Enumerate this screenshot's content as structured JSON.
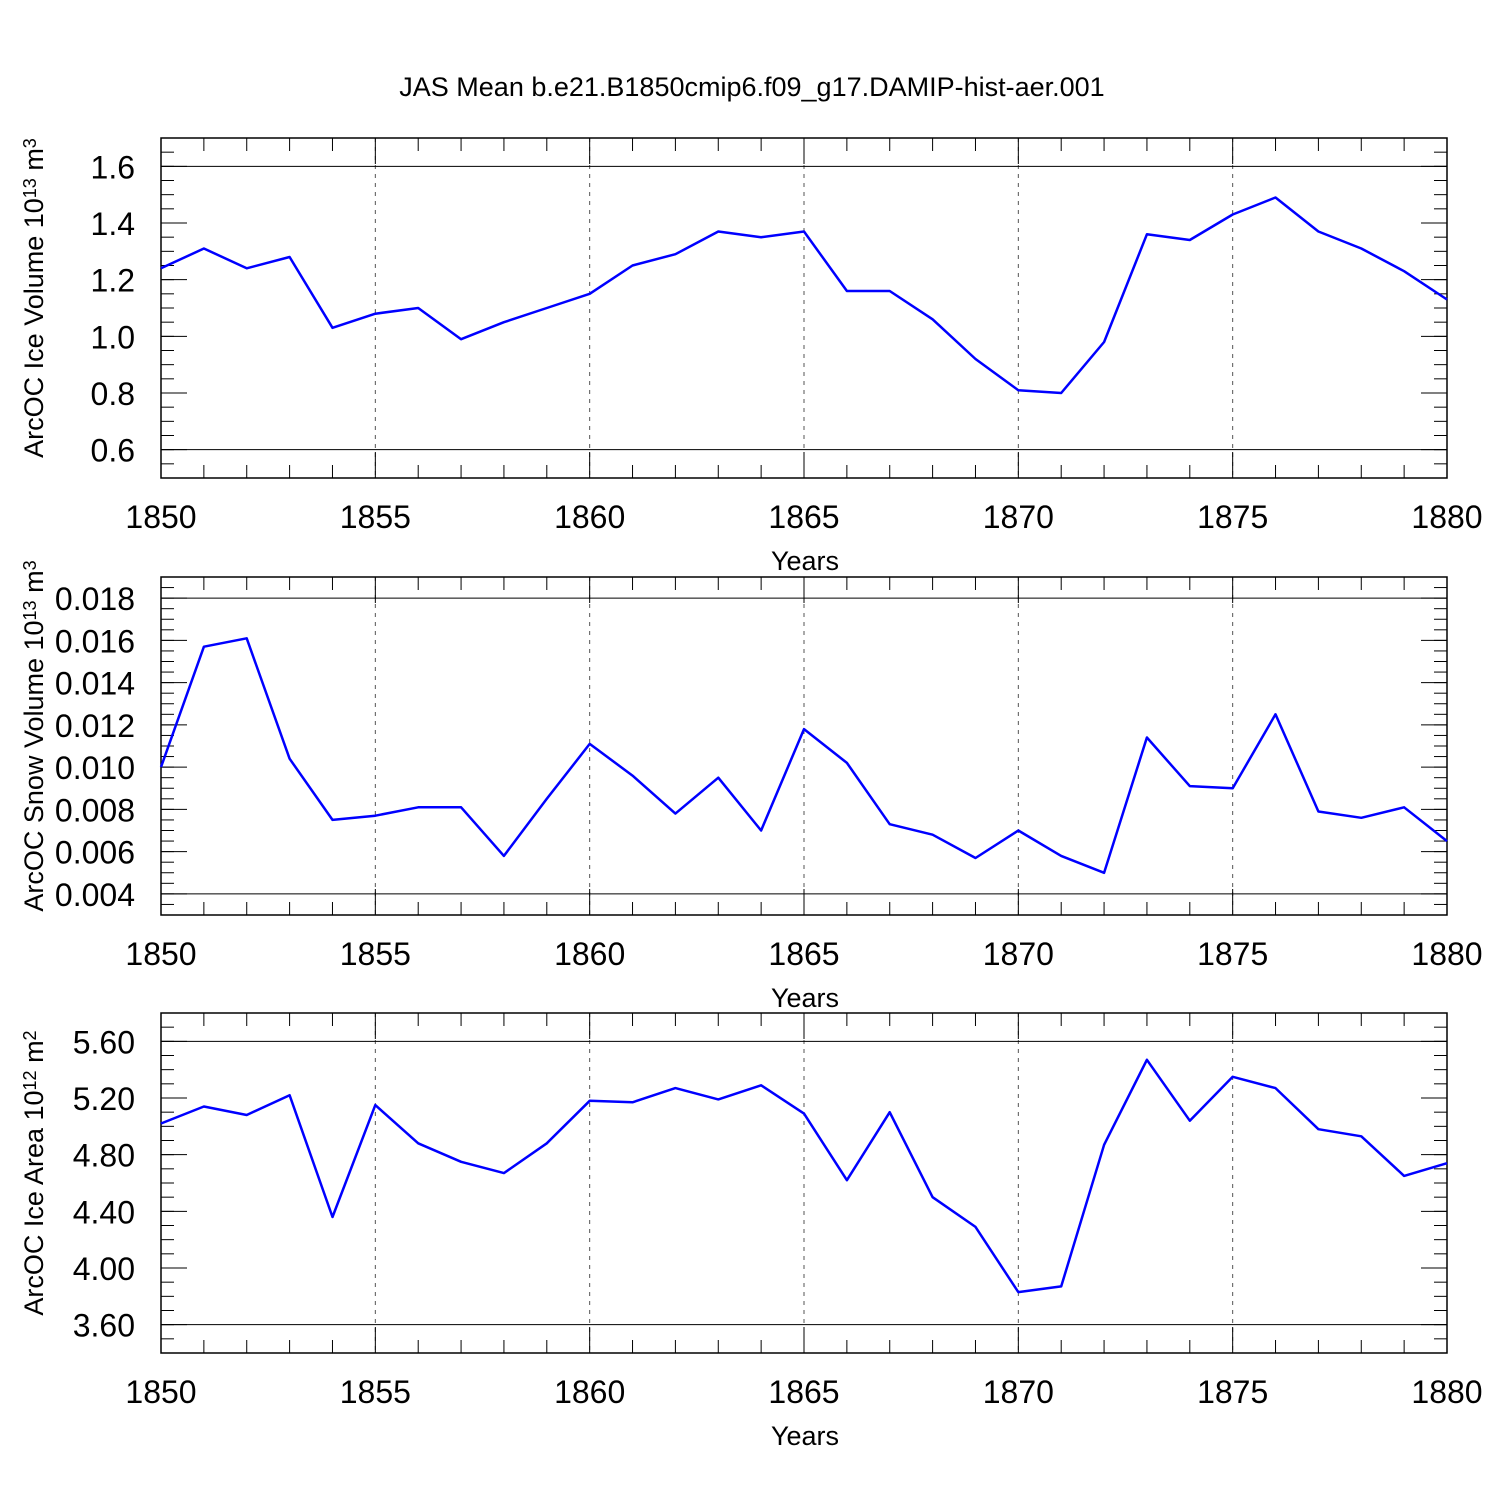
{
  "title": "JAS Mean b.e21.B1850cmip6.f09_g17.DAMIP-hist-aer.001",
  "line_color": "#0000ff",
  "chart_data": [
    {
      "type": "line",
      "name": "ice-volume",
      "ylabel_main": "ArcOC Ice Volume 10",
      "ylabel_exp": "13",
      "ylabel_unit": " m",
      "ylabel_unit_exp": "3",
      "xlabel": "Years",
      "xlim": [
        1850,
        1880
      ],
      "ylim": [
        0.5,
        1.7
      ],
      "yticks": [
        0.6,
        0.8,
        1.0,
        1.2,
        1.4,
        1.6
      ],
      "ytick_labels": [
        "0.6",
        "0.8",
        "1.0",
        "1.2",
        "1.4",
        "1.6"
      ],
      "ytick_minor": 0.05,
      "xticks": [
        1850,
        1855,
        1860,
        1865,
        1870,
        1875,
        1880
      ],
      "xtick_labels": [
        "1850",
        "1855",
        "1860",
        "1865",
        "1870",
        "1875",
        "1880"
      ],
      "x": [
        1850,
        1851,
        1852,
        1853,
        1854,
        1855,
        1856,
        1857,
        1858,
        1859,
        1860,
        1861,
        1862,
        1863,
        1864,
        1865,
        1866,
        1867,
        1868,
        1869,
        1870,
        1871,
        1872,
        1873,
        1874,
        1875,
        1876,
        1877,
        1878,
        1879,
        1880
      ],
      "y": [
        1.24,
        1.31,
        1.24,
        1.28,
        1.03,
        1.08,
        1.1,
        0.99,
        1.05,
        1.1,
        1.15,
        1.25,
        1.29,
        1.37,
        1.35,
        1.37,
        1.16,
        1.16,
        1.06,
        0.92,
        0.81,
        0.8,
        0.98,
        1.36,
        1.34,
        1.43,
        1.49,
        1.37,
        1.31,
        1.23,
        1.13
      ]
    },
    {
      "type": "line",
      "name": "snow-volume",
      "ylabel_main": "ArcOC Snow Volume 10",
      "ylabel_exp": "13",
      "ylabel_unit": " m",
      "ylabel_unit_exp": "3",
      "xlabel": "Years",
      "xlim": [
        1850,
        1880
      ],
      "ylim": [
        0.003,
        0.019
      ],
      "yticks": [
        0.004,
        0.006,
        0.008,
        0.01,
        0.012,
        0.014,
        0.016,
        0.018
      ],
      "ytick_labels": [
        "0.004",
        "0.006",
        "0.008",
        "0.010",
        "0.012",
        "0.014",
        "0.016",
        "0.018"
      ],
      "ytick_minor": 0.0005,
      "xticks": [
        1850,
        1855,
        1860,
        1865,
        1870,
        1875,
        1880
      ],
      "xtick_labels": [
        "1850",
        "1855",
        "1860",
        "1865",
        "1870",
        "1875",
        "1880"
      ],
      "x": [
        1850,
        1851,
        1852,
        1853,
        1854,
        1855,
        1856,
        1857,
        1858,
        1859,
        1860,
        1861,
        1862,
        1863,
        1864,
        1865,
        1866,
        1867,
        1868,
        1869,
        1870,
        1871,
        1872,
        1873,
        1874,
        1875,
        1876,
        1877,
        1878,
        1879,
        1880
      ],
      "y": [
        0.01,
        0.0157,
        0.0161,
        0.0104,
        0.0075,
        0.0077,
        0.0081,
        0.0081,
        0.0058,
        0.0085,
        0.0111,
        0.0096,
        0.0078,
        0.0095,
        0.007,
        0.0118,
        0.0102,
        0.0073,
        0.0068,
        0.0057,
        0.007,
        0.0058,
        0.005,
        0.0114,
        0.0091,
        0.009,
        0.0125,
        0.0079,
        0.0076,
        0.0081,
        0.0065
      ]
    },
    {
      "type": "line",
      "name": "ice-area",
      "ylabel_main": "ArcOC Ice Area 10",
      "ylabel_exp": "12",
      "ylabel_unit": " m",
      "ylabel_unit_exp": "2",
      "xlabel": "Years",
      "xlim": [
        1850,
        1880
      ],
      "ylim": [
        3.4,
        5.8
      ],
      "yticks": [
        3.6,
        4.0,
        4.4,
        4.8,
        5.2,
        5.6
      ],
      "ytick_labels": [
        "3.60",
        "4.00",
        "4.40",
        "4.80",
        "5.20",
        "5.60"
      ],
      "ytick_minor": 0.1,
      "xticks": [
        1850,
        1855,
        1860,
        1865,
        1870,
        1875,
        1880
      ],
      "xtick_labels": [
        "1850",
        "1855",
        "1860",
        "1865",
        "1870",
        "1875",
        "1880"
      ],
      "x": [
        1850,
        1851,
        1852,
        1853,
        1854,
        1855,
        1856,
        1857,
        1858,
        1859,
        1860,
        1861,
        1862,
        1863,
        1864,
        1865,
        1866,
        1867,
        1868,
        1869,
        1870,
        1871,
        1872,
        1873,
        1874,
        1875,
        1876,
        1877,
        1878,
        1879,
        1880
      ],
      "y": [
        5.02,
        5.14,
        5.08,
        5.22,
        4.36,
        5.15,
        4.88,
        4.75,
        4.67,
        4.88,
        5.18,
        5.17,
        5.27,
        5.19,
        5.29,
        5.09,
        4.62,
        5.1,
        4.5,
        4.29,
        3.83,
        3.87,
        4.87,
        5.47,
        5.04,
        5.35,
        5.27,
        4.98,
        4.93,
        4.65,
        4.74
      ]
    }
  ]
}
